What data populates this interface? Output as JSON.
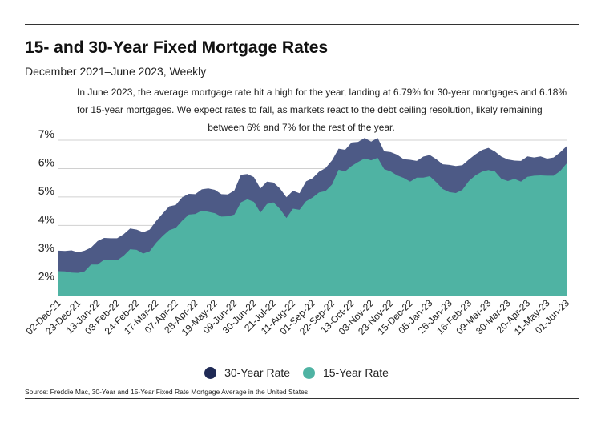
{
  "header": {
    "title": "15- and 30-Year Fixed Mortgage Rates",
    "subtitle": "December 2021–June 2023, Weekly"
  },
  "annotation": {
    "line1": "In June 2023, the average mortgage rate hit a high for the year, landing at 6.79% for 30-year mortgages and 6.18%",
    "line2": "for 15-year mortgages. We expect rates to fall, as markets react to the debt ceiling resolution, likely remaining",
    "line3": "between 6% and 7% for the rest of the year."
  },
  "colors": {
    "series_30yr": "#4d5a86",
    "series_15yr": "#4fb3a3",
    "legend_30yr": "#1f2a55",
    "legend_15yr": "#4fb3a3",
    "gridline": "#d0d0d0"
  },
  "legend": {
    "item_30yr": "30-Year Rate",
    "item_15yr": "15-Year Rate"
  },
  "footer": {
    "source": "Source:  Freddie Mac, 30-Year  and 15-Year Fixed Rate Mortgage Average in the United States"
  },
  "chart_data": {
    "type": "area",
    "title": "15- and 30-Year Fixed Mortgage Rates",
    "xlabel": "",
    "ylabel": "",
    "ylim": [
      1.5,
      7.0
    ],
    "y_ticks": [
      2,
      3,
      4,
      5,
      6,
      7
    ],
    "y_tick_labels": [
      "2%",
      "3%",
      "4%",
      "5%",
      "6%",
      "7%"
    ],
    "grid": true,
    "legend_position": "bottom",
    "x_tick_labels": [
      "02-Dec-21",
      "23-Dec-21",
      "13-Jan-22",
      "03-Feb-22",
      "24-Feb-22",
      "17-Mar-22",
      "07-Apr-22",
      "28-Apr-22",
      "19-May-22",
      "09-Jun-22",
      "30-Jun-22",
      "21-Jul-22",
      "11-Aug-22",
      "01-Sep-22",
      "22-Sep-22",
      "13-Oct-22",
      "03-Nov-22",
      "23-Nov-22",
      "15-Dec-22",
      "05-Jan-23",
      "26-Jan-23",
      "16-Feb-23",
      "09-Mar-23",
      "30-Mar-23",
      "20-Apr-23",
      "11-May-23",
      "01-Jun-23"
    ],
    "x_tick_every": 3,
    "series": [
      {
        "name": "30-Year Rate",
        "values": [
          3.11,
          3.1,
          3.12,
          3.05,
          3.11,
          3.22,
          3.45,
          3.56,
          3.55,
          3.55,
          3.69,
          3.89,
          3.85,
          3.76,
          3.85,
          4.16,
          4.42,
          4.67,
          4.72,
          4.99,
          5.11,
          5.1,
          5.27,
          5.3,
          5.25,
          5.1,
          5.09,
          5.23,
          5.78,
          5.81,
          5.7,
          5.3,
          5.54,
          5.51,
          5.3,
          4.99,
          5.22,
          5.13,
          5.55,
          5.66,
          5.89,
          6.02,
          6.29,
          6.7,
          6.66,
          6.92,
          6.94,
          7.08,
          6.95,
          7.08,
          6.61,
          6.58,
          6.49,
          6.33,
          6.31,
          6.27,
          6.42,
          6.48,
          6.33,
          6.15,
          6.13,
          6.09,
          6.12,
          6.32,
          6.5,
          6.65,
          6.73,
          6.6,
          6.42,
          6.32,
          6.28,
          6.27,
          6.43,
          6.39,
          6.43,
          6.35,
          6.39,
          6.57,
          6.79
        ]
      },
      {
        "name": "15-Year Rate",
        "values": [
          2.39,
          2.38,
          2.34,
          2.33,
          2.38,
          2.62,
          2.62,
          2.79,
          2.77,
          2.77,
          2.93,
          3.16,
          3.14,
          3.01,
          3.09,
          3.39,
          3.63,
          3.83,
          3.91,
          4.17,
          4.38,
          4.4,
          4.52,
          4.48,
          4.43,
          4.31,
          4.32,
          4.38,
          4.81,
          4.92,
          4.83,
          4.45,
          4.75,
          4.81,
          4.58,
          4.26,
          4.59,
          4.55,
          4.85,
          4.98,
          5.16,
          5.21,
          5.44,
          5.96,
          5.9,
          6.09,
          6.23,
          6.36,
          6.29,
          6.38,
          5.98,
          5.9,
          5.76,
          5.67,
          5.54,
          5.68,
          5.68,
          5.73,
          5.52,
          5.28,
          5.17,
          5.14,
          5.25,
          5.56,
          5.76,
          5.89,
          5.95,
          5.9,
          5.64,
          5.56,
          5.64,
          5.54,
          5.71,
          5.75,
          5.76,
          5.75,
          5.75,
          5.91,
          6.18
        ]
      }
    ]
  }
}
